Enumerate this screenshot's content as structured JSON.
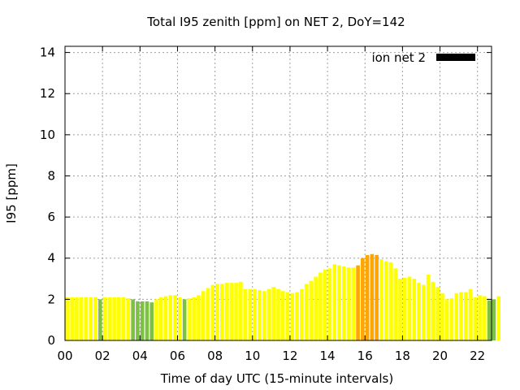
{
  "chart_data": {
    "type": "bar",
    "title": "Total I95 zenith [ppm] on NET 2, DoY=142",
    "xlabel": "Time of day UTC (15-minute intervals)",
    "ylabel": "I95 [ppm]",
    "xlim": [
      0,
      22.75
    ],
    "ylim": [
      0,
      14.3
    ],
    "x_interval_hours": 0.25,
    "x_ticks": [
      "00",
      "02",
      "04",
      "06",
      "08",
      "10",
      "12",
      "14",
      "16",
      "18",
      "20",
      "22"
    ],
    "y_ticks": [
      "0",
      "2",
      "4",
      "6",
      "8",
      "10",
      "12",
      "14"
    ],
    "grid": true,
    "legend": {
      "position": "top-right",
      "label": "ion net 2",
      "color": "#000000"
    },
    "colors": {
      "green": "#7cc142",
      "yellow": "#ffff00",
      "orange": "#ffa500"
    },
    "values": [
      2.1,
      2.1,
      2.1,
      2.1,
      2.1,
      2.1,
      2.1,
      2.0,
      2.1,
      2.1,
      2.1,
      2.1,
      2.1,
      2.05,
      2.0,
      1.9,
      1.9,
      1.9,
      1.85,
      2.0,
      2.1,
      2.15,
      2.2,
      2.2,
      2.1,
      2.0,
      2.05,
      2.1,
      2.2,
      2.4,
      2.55,
      2.7,
      2.75,
      2.75,
      2.8,
      2.8,
      2.8,
      2.85,
      2.5,
      2.5,
      2.5,
      2.45,
      2.4,
      2.5,
      2.6,
      2.5,
      2.4,
      2.35,
      2.3,
      2.35,
      2.5,
      2.75,
      2.9,
      3.1,
      3.3,
      3.45,
      3.5,
      3.7,
      3.65,
      3.6,
      3.55,
      3.55,
      3.65,
      4.0,
      4.15,
      4.2,
      4.15,
      3.95,
      3.85,
      3.8,
      3.5,
      3.0,
      3.05,
      3.1,
      3.0,
      2.8,
      2.7,
      3.2,
      2.85,
      2.6,
      2.3,
      2.0,
      2.05,
      2.3,
      2.35,
      2.35,
      2.5,
      2.1,
      2.2,
      2.15,
      1.95,
      2.0,
      2.15
    ],
    "bar_colors": [
      "yellow",
      "yellow",
      "yellow",
      "yellow",
      "yellow",
      "yellow",
      "yellow",
      "green",
      "yellow",
      "yellow",
      "yellow",
      "yellow",
      "yellow",
      "yellow",
      "green",
      "green",
      "green",
      "green",
      "green",
      "yellow",
      "yellow",
      "yellow",
      "yellow",
      "yellow",
      "yellow",
      "green",
      "yellow",
      "yellow",
      "yellow",
      "yellow",
      "yellow",
      "yellow",
      "yellow",
      "yellow",
      "yellow",
      "yellow",
      "yellow",
      "yellow",
      "yellow",
      "yellow",
      "yellow",
      "yellow",
      "yellow",
      "yellow",
      "yellow",
      "yellow",
      "yellow",
      "yellow",
      "yellow",
      "yellow",
      "yellow",
      "yellow",
      "yellow",
      "yellow",
      "yellow",
      "yellow",
      "yellow",
      "yellow",
      "yellow",
      "yellow",
      "yellow",
      "yellow",
      "orange",
      "orange",
      "orange",
      "orange",
      "orange",
      "yellow",
      "yellow",
      "yellow",
      "yellow",
      "yellow",
      "yellow",
      "yellow",
      "yellow",
      "yellow",
      "yellow",
      "yellow",
      "yellow",
      "yellow",
      "yellow",
      "yellow",
      "yellow",
      "yellow",
      "yellow",
      "yellow",
      "yellow",
      "yellow",
      "yellow",
      "yellow",
      "green",
      "green",
      "yellow"
    ]
  }
}
